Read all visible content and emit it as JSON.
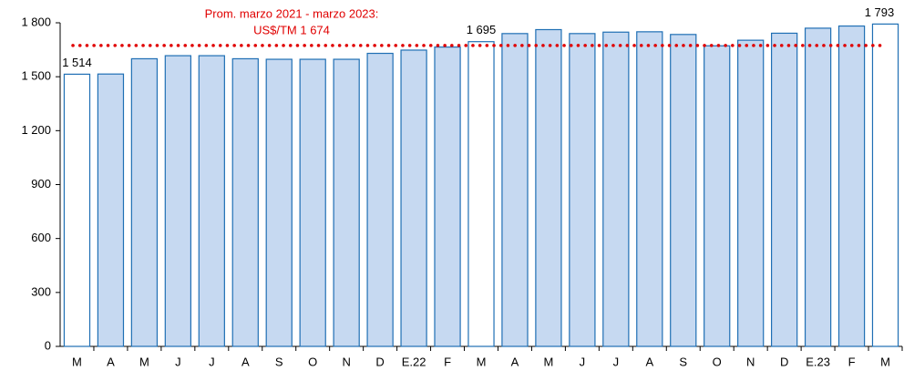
{
  "chart_data": {
    "type": "bar",
    "categories": [
      "M",
      "A",
      "M",
      "J",
      "J",
      "A",
      "S",
      "O",
      "N",
      "D",
      "E.22",
      "F",
      "M",
      "A",
      "M",
      "J",
      "J",
      "A",
      "S",
      "O",
      "N",
      "D",
      "E.23",
      "F",
      "M"
    ],
    "values": [
      1514,
      1515,
      1600,
      1617,
      1617,
      1600,
      1597,
      1597,
      1597,
      1630,
      1648,
      1665,
      1695,
      1740,
      1762,
      1740,
      1748,
      1750,
      1735,
      1672,
      1703,
      1742,
      1770,
      1782,
      1793
    ],
    "value_labels": [
      "1 514",
      null,
      null,
      null,
      null,
      null,
      null,
      null,
      null,
      null,
      null,
      null,
      "1 695",
      null,
      null,
      null,
      null,
      null,
      null,
      null,
      null,
      null,
      null,
      null,
      "1 793"
    ],
    "colors": [
      "#ffffff",
      "#c6d9f1",
      "#c6d9f1",
      "#c6d9f1",
      "#c6d9f1",
      "#c6d9f1",
      "#c6d9f1",
      "#c6d9f1",
      "#c6d9f1",
      "#c6d9f1",
      "#c6d9f1",
      "#c6d9f1",
      "#ffffff",
      "#c6d9f1",
      "#c6d9f1",
      "#c6d9f1",
      "#c6d9f1",
      "#c6d9f1",
      "#c6d9f1",
      "#c6d9f1",
      "#c6d9f1",
      "#c6d9f1",
      "#c6d9f1",
      "#c6d9f1",
      "#ffffff"
    ],
    "edge_color": "#1f6fb4",
    "ylim": [
      0,
      1800
    ],
    "yticks": [
      0,
      300,
      600,
      900,
      {
        "value": 1200,
        "label": "1 200"
      },
      {
        "value": 1500,
        "label": "1 500"
      },
      {
        "value": 1800,
        "label": "1 800"
      }
    ],
    "reference_line": {
      "value": 1674,
      "color": "#e00000",
      "label_lines": [
        "Prom. marzo 2021 - marzo 2023:",
        "US$/TM 1 674"
      ]
    }
  }
}
